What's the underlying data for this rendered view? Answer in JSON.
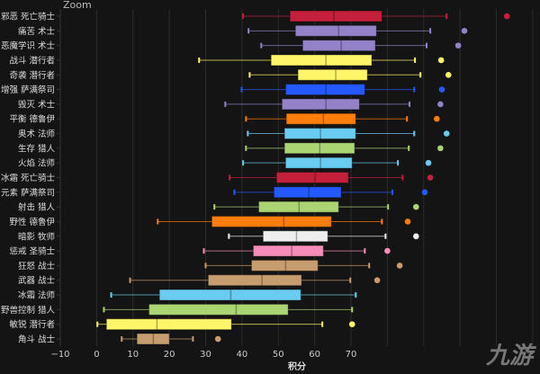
{
  "top_label": "Zoom",
  "watermark": "九游",
  "chart_data": {
    "type": "boxplot",
    "orientation": "horizontal",
    "xlabel": "积分",
    "ylabel": "",
    "xlim": [
      -10,
      122
    ],
    "xticks": [
      -10,
      0,
      10,
      20,
      30,
      40,
      50,
      60,
      70
    ],
    "grid": true,
    "background": "#141414",
    "series": [
      {
        "label": "邪恶 死亡骑士",
        "color": "#c41f3b",
        "min": 40.3,
        "q1": 53.2,
        "median": 65.3,
        "q3": 78.5,
        "max": 96.3,
        "outlier": 112.9
      },
      {
        "label": "痛苦 术士",
        "color": "#9482c9",
        "min": 41.8,
        "q1": 54.7,
        "median": 66.6,
        "q3": 77.0,
        "max": 91.8,
        "outlier": 101.2
      },
      {
        "label": "恶魔学识 术士",
        "color": "#9482c9",
        "min": 45.3,
        "q1": 56.7,
        "median": 67.3,
        "q3": 76.7,
        "max": 90.8,
        "outlier": 99.5
      },
      {
        "label": "战斗 潜行者",
        "color": "#fff569",
        "min": 28.2,
        "q1": 48.0,
        "median": 63.1,
        "q3": 75.7,
        "max": 87.6,
        "outlier": 94.8
      },
      {
        "label": "奇袭 潜行者",
        "color": "#fff569",
        "min": 42.1,
        "q1": 55.4,
        "median": 65.8,
        "q3": 74.5,
        "max": 89.1,
        "outlier": 96.8
      },
      {
        "label": "增强 萨满祭司",
        "color": "#2459ff",
        "min": 39.9,
        "q1": 52.0,
        "median": 63.1,
        "q3": 73.8,
        "max": 87.4,
        "outlier": 95.0
      },
      {
        "label": "毁灭 术士",
        "color": "#9482c9",
        "min": 35.4,
        "q1": 51.0,
        "median": 63.1,
        "q3": 72.3,
        "max": 86.1,
        "outlier": 94.6
      },
      {
        "label": "平衡 德鲁伊",
        "color": "#ff7d0a",
        "min": 41.1,
        "q1": 52.2,
        "median": 62.4,
        "q3": 71.3,
        "max": 85.4,
        "outlier": 93.6
      },
      {
        "label": "奥术 法师",
        "color": "#69ccf0",
        "min": 41.6,
        "q1": 51.7,
        "median": 61.6,
        "q3": 71.3,
        "max": 87.4,
        "outlier": 96.3
      },
      {
        "label": "生存 猎人",
        "color": "#abd473",
        "min": 41.1,
        "q1": 51.7,
        "median": 61.4,
        "q3": 71.0,
        "max": 85.9,
        "outlier": 94.6
      },
      {
        "label": "火焰 法师",
        "color": "#69ccf0",
        "min": 40.3,
        "q1": 52.0,
        "median": 61.6,
        "q3": 70.3,
        "max": 82.9,
        "outlier": 91.3
      },
      {
        "label": "冰霜 死亡骑士",
        "color": "#c41f3b",
        "min": 36.6,
        "q1": 49.5,
        "median": 60.1,
        "q3": 69.3,
        "max": 84.2,
        "outlier": 91.8
      },
      {
        "label": "元素 萨满祭司",
        "color": "#2459ff",
        "min": 37.9,
        "q1": 48.8,
        "median": 58.4,
        "q3": 67.3,
        "max": 81.4,
        "outlier": 90.3
      },
      {
        "label": "射击 猎人",
        "color": "#abd473",
        "min": 32.4,
        "q1": 44.6,
        "median": 55.7,
        "q3": 66.6,
        "max": 80.2,
        "outlier": 87.9
      },
      {
        "label": "野性 德鲁伊",
        "color": "#ff7d0a",
        "min": 16.8,
        "q1": 31.7,
        "median": 51.5,
        "q3": 64.6,
        "max": 78.5,
        "outlier": 85.6
      },
      {
        "label": "暗影 牧师",
        "color": "#eeeeee",
        "min": 36.4,
        "q1": 45.8,
        "median": 55.0,
        "q3": 63.6,
        "max": 79.5,
        "outlier": 87.9
      },
      {
        "label": "惩戒 圣骑士",
        "color": "#f58cba",
        "min": 29.5,
        "q1": 43.1,
        "median": 53.7,
        "q3": 62.4,
        "max": 73.8,
        "outlier": 80.0
      },
      {
        "label": "狂怒 战士",
        "color": "#c79c6e",
        "min": 30.0,
        "q1": 42.6,
        "median": 52.0,
        "q3": 60.9,
        "max": 75.0,
        "outlier": 83.4
      },
      {
        "label": "武器 战士",
        "color": "#c79c6e",
        "min": 9.2,
        "q1": 30.7,
        "median": 45.5,
        "q3": 56.4,
        "max": 69.8,
        "outlier": 77.2
      },
      {
        "label": "冰霜 法师",
        "color": "#69ccf0",
        "min": 4.0,
        "q1": 17.3,
        "median": 36.9,
        "q3": 56.2,
        "max": 71.3,
        "outlier": null
      },
      {
        "label": "野兽控制 猎人",
        "color": "#abd473",
        "min": 2.0,
        "q1": 14.4,
        "median": 38.4,
        "q3": 52.7,
        "max": 70.3,
        "outlier": null
      },
      {
        "label": "敏锐 潜行者",
        "color": "#fff569",
        "min": 0.2,
        "q1": 2.7,
        "median": 16.6,
        "q3": 37.1,
        "max": 62.1,
        "outlier": 70.3
      },
      {
        "label": "角斗 战士",
        "color": "#c79c6e",
        "min": 6.9,
        "q1": 11.1,
        "median": 15.6,
        "q3": 20.0,
        "max": 26.5,
        "outlier": 33.4
      }
    ]
  }
}
